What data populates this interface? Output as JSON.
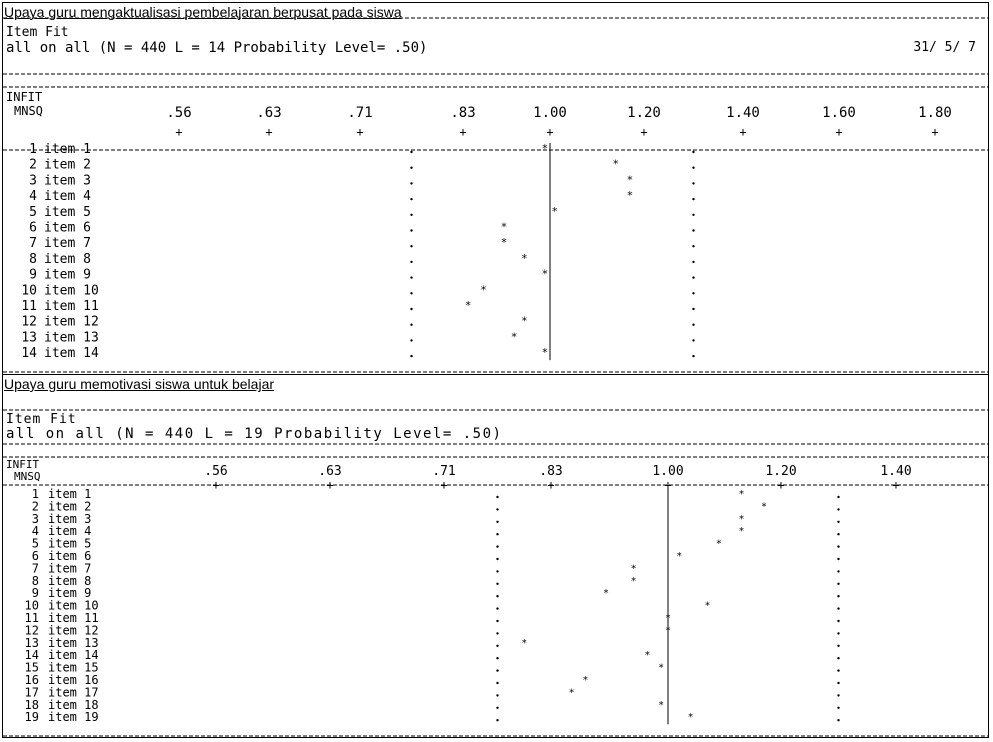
{
  "charts": [
    {
      "heading": "Upaya guru mengaktualisasi pembelajaran berpusat pada siswa",
      "fit_title": "Item Fit",
      "subtitle": "all on all (N = 440 L = 14 Probability Level= .50)",
      "date": "31/ 5/ 7",
      "infit_label": "INFIT",
      "mnsq_label": "MNSQ",
      "ticks": [
        ".56",
        ".63",
        ".71",
        ".83",
        "1.00",
        "1.20",
        "1.40",
        "1.60",
        "1.80"
      ]
    },
    {
      "heading": "Upaya guru memotivasi siswa untuk belajar",
      "fit_title": "Item Fit",
      "subtitle": "all on all (N = 440 L = 19 Probability Level= .50)",
      "date": "",
      "infit_label": "INFIT",
      "mnsq_label": "MNSQ",
      "ticks": [
        ".56",
        ".63",
        ".71",
        ".83",
        "1.00",
        "1.20",
        "1.40"
      ]
    }
  ],
  "chart_data": [
    {
      "type": "scatter",
      "title": "Item Fit",
      "xlabel": "INFIT MNSQ",
      "ylabel": "",
      "x_ticks": [
        0.56,
        0.63,
        0.71,
        0.83,
        1.0,
        1.2,
        1.4,
        1.6,
        1.8
      ],
      "confidence_lower": 0.77,
      "confidence_upper": 1.3,
      "reference_line": 1.0,
      "marker": "*",
      "categories": [
        "item 1",
        "item 2",
        "item 3",
        "item 4",
        "item 5",
        "item 6",
        "item 7",
        "item 8",
        "item 9",
        "item 10",
        "item 11",
        "item 12",
        "item 13",
        "item 14"
      ],
      "numbers": [
        1,
        2,
        3,
        4,
        5,
        6,
        7,
        8,
        9,
        10,
        11,
        12,
        13,
        14
      ],
      "values": [
        0.99,
        1.14,
        1.17,
        1.17,
        1.01,
        0.91,
        0.91,
        0.95,
        0.99,
        0.87,
        0.84,
        0.95,
        0.93,
        0.99
      ]
    },
    {
      "type": "scatter",
      "title": "Item Fit",
      "xlabel": "INFIT MNSQ",
      "ylabel": "",
      "x_ticks": [
        0.56,
        0.63,
        0.71,
        0.83,
        1.0,
        1.2,
        1.4
      ],
      "confidence_lower": 0.77,
      "confidence_upper": 1.3,
      "reference_line": 1.0,
      "marker": "*",
      "categories": [
        "item 1",
        "item 2",
        "item 3",
        "item 4",
        "item 5",
        "item 6",
        "item 7",
        "item 8",
        "item 9",
        "item 10",
        "item 11",
        "item 12",
        "item 13",
        "item 14",
        "item 15",
        "item 16",
        "item 17",
        "item 18",
        "item 19"
      ],
      "numbers": [
        1,
        2,
        3,
        4,
        5,
        6,
        7,
        8,
        9,
        10,
        11,
        12,
        13,
        14,
        15,
        16,
        17,
        18,
        19
      ],
      "values": [
        1.13,
        1.17,
        1.13,
        1.13,
        1.09,
        1.02,
        0.95,
        0.95,
        0.91,
        1.07,
        1.0,
        1.0,
        0.8,
        0.97,
        0.99,
        0.88,
        0.86,
        0.99,
        1.04
      ]
    }
  ]
}
